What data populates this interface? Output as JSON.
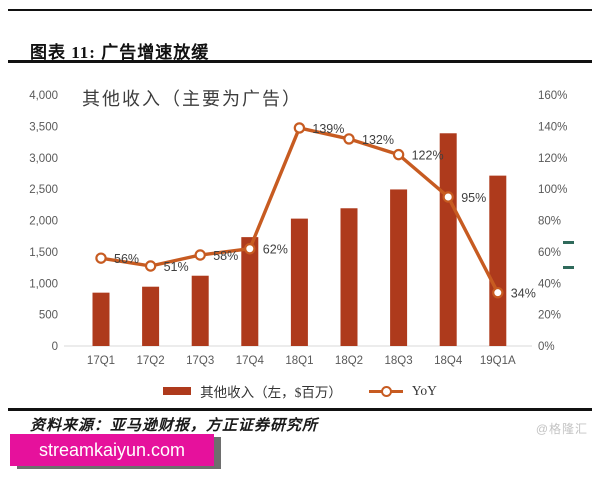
{
  "header": {
    "title": "图表 11: 广告增速放缓"
  },
  "chart_data": {
    "type": "bar+line",
    "title": "其他收入（主要为广告）",
    "categories": [
      "17Q1",
      "17Q2",
      "17Q3",
      "17Q4",
      "18Q1",
      "18Q2",
      "18Q3",
      "18Q4",
      "19Q1A"
    ],
    "series": [
      {
        "name": "其他收入（左，$百万）",
        "type": "bar",
        "axis": "left",
        "values": [
          850,
          945,
          1120,
          1735,
          2030,
          2195,
          2495,
          3390,
          2715
        ],
        "color": "#ae3a1c"
      },
      {
        "name": "YoY",
        "type": "line",
        "axis": "right",
        "values": [
          56,
          51,
          58,
          62,
          139,
          132,
          122,
          95,
          34
        ],
        "labels": [
          "56%",
          "51%",
          "58%",
          "62%",
          "139%",
          "132%",
          "122%",
          "95%",
          "34%"
        ],
        "color": "#c75b21"
      }
    ],
    "left_axis": {
      "min": 0,
      "max": 4000,
      "step": 500,
      "ticks": [
        "4,000",
        "3,500",
        "3,000",
        "2,500",
        "2,000",
        "1,500",
        "1,000",
        "500",
        "0"
      ]
    },
    "right_axis": {
      "min": 0,
      "max": 160,
      "step": 20,
      "ticks": [
        "160%",
        "140%",
        "120%",
        "100%",
        "80%",
        "60%",
        "40%",
        "20%",
        "0%"
      ]
    },
    "grid": false,
    "legend_position": "bottom"
  },
  "source": {
    "text": "资料来源：亚马逊财报，方正证券研究所"
  },
  "watermark": {
    "text": "streamkaiyun.com",
    "bg": "#e6119c"
  },
  "attribution": {
    "text": "@格隆汇"
  }
}
